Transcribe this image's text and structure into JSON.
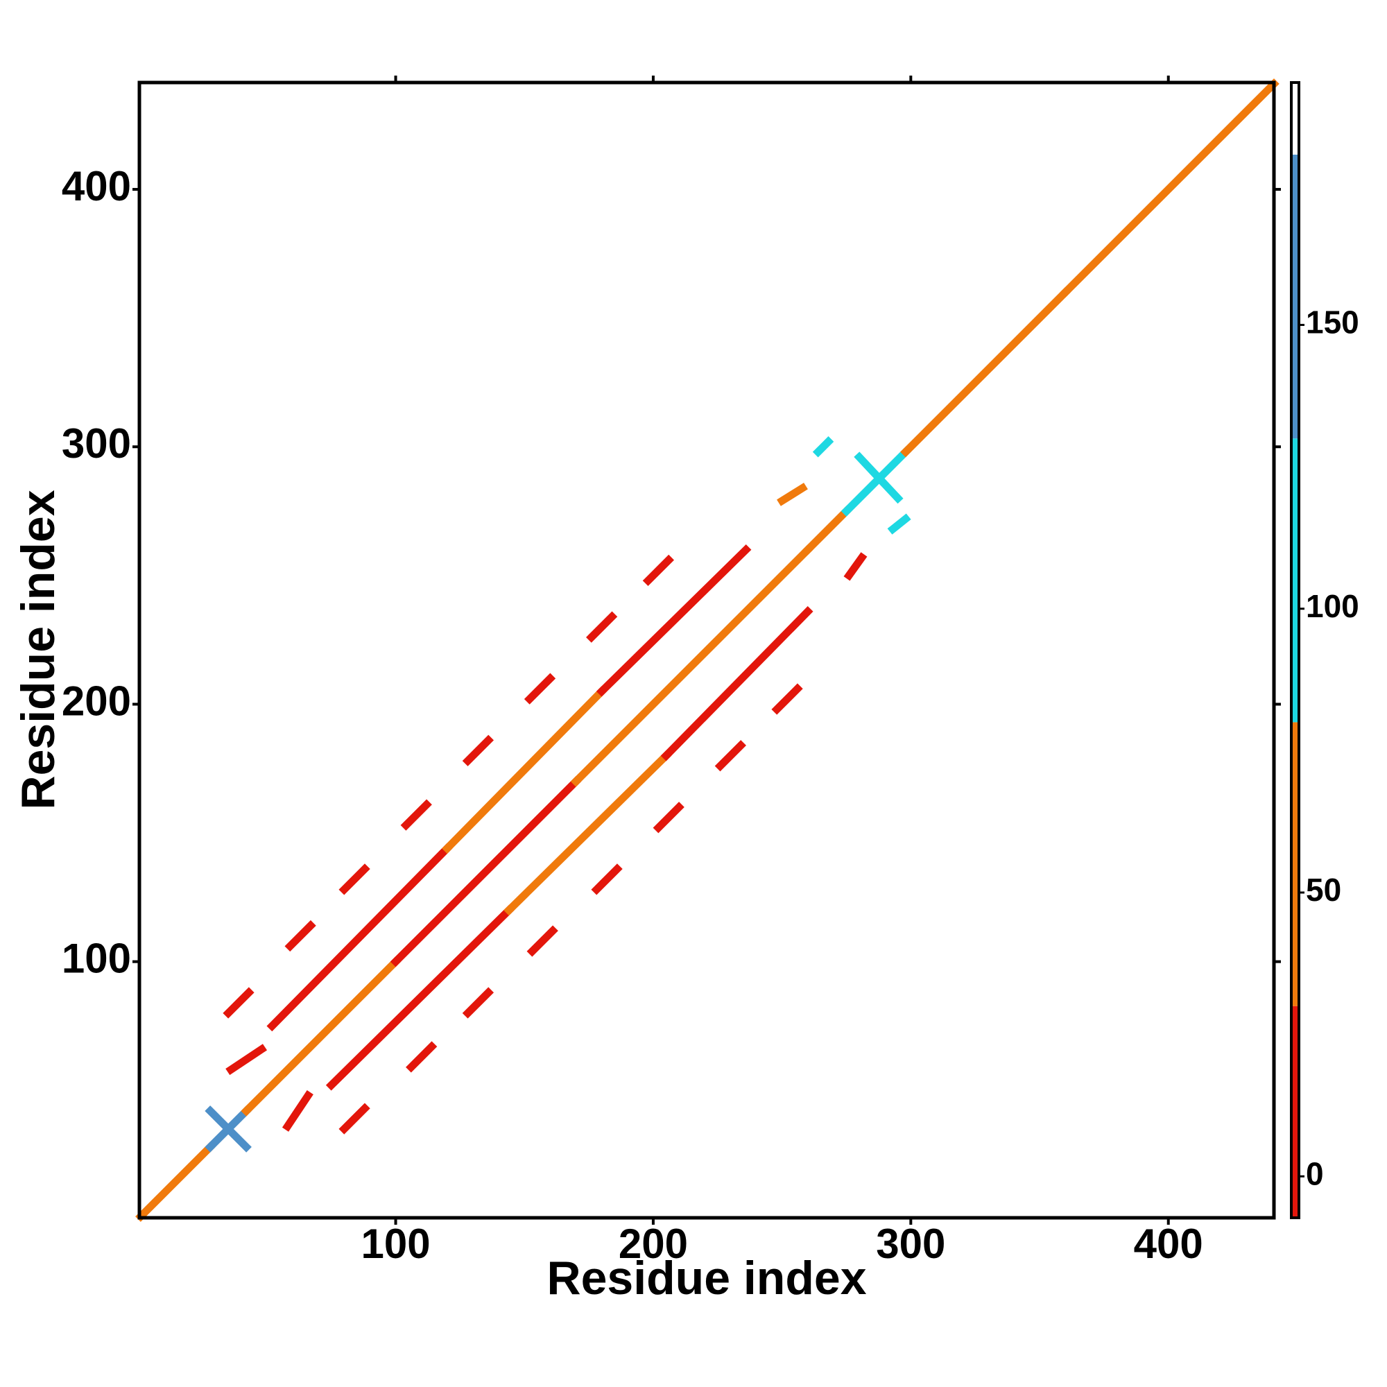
{
  "chart_data": {
    "type": "heatmap",
    "x_label": "Residue index",
    "y_label": "Residue index",
    "xlim": [
      0.5,
      441
    ],
    "ylim": [
      0.5,
      441.5
    ],
    "xticks": [
      100,
      200,
      300,
      400
    ],
    "yticks": [
      100,
      200,
      300,
      400
    ],
    "colorbar": {
      "lim": [
        -7.3,
        192.7
      ],
      "ticks": [
        0,
        50,
        100,
        150
      ],
      "bounds": [
        -7.3,
        30,
        80,
        130,
        180,
        192.7
      ],
      "colors": [
        "#e3160b",
        "#f07a0c",
        "#1ed8e2",
        "#4d8fc8",
        "#ffffff"
      ]
    },
    "segments": [
      {
        "x": [
          1,
          28
        ],
        "y": [
          1,
          28
        ],
        "value": 40
      },
      {
        "x": [
          28,
          42
        ],
        "y": [
          28,
          42
        ],
        "value": 140
      },
      {
        "x": [
          42,
          100
        ],
        "y": [
          42,
          100
        ],
        "value": 45
      },
      {
        "x": [
          100,
          170
        ],
        "y": [
          100,
          170
        ],
        "value": 20
      },
      {
        "x": [
          170,
          260
        ],
        "y": [
          170,
          260
        ],
        "value": 45
      },
      {
        "x": [
          260,
          275
        ],
        "y": [
          260,
          275
        ],
        "value": 60
      },
      {
        "x": [
          275,
          298
        ],
        "y": [
          275,
          298
        ],
        "value": 100
      },
      {
        "x": [
          298,
          360
        ],
        "y": [
          298,
          360
        ],
        "value": 50
      },
      {
        "x": [
          360,
          441
        ],
        "y": [
          360,
          441
        ],
        "value": 60
      },
      {
        "x": [
          28,
          42
        ],
        "y": [
          42,
          28
        ],
        "value": 145
      },
      {
        "x": [
          280,
          295
        ],
        "y": [
          296,
          280
        ],
        "value": 105
      },
      {
        "x": [
          36,
          48
        ],
        "y": [
          58,
          66
        ],
        "value": 10
      },
      {
        "x": [
          52,
          120
        ],
        "y": [
          75,
          144
        ],
        "value": 10
      },
      {
        "x": [
          120,
          180
        ],
        "y": [
          144,
          205
        ],
        "value": 45
      },
      {
        "x": [
          180,
          236
        ],
        "y": [
          205,
          260
        ],
        "value": 10
      },
      {
        "x": [
          58,
          66
        ],
        "y": [
          36,
          48
        ],
        "value": 10
      },
      {
        "x": [
          75,
          144
        ],
        "y": [
          52,
          120
        ],
        "value": 10
      },
      {
        "x": [
          144,
          205
        ],
        "y": [
          120,
          180
        ],
        "value": 45
      },
      {
        "x": [
          205,
          260
        ],
        "y": [
          180,
          236
        ],
        "value": 10
      },
      {
        "x": [
          35,
          43
        ],
        "y": [
          80,
          88
        ],
        "value": 10
      },
      {
        "x": [
          59,
          67
        ],
        "y": [
          106,
          114
        ],
        "value": 10
      },
      {
        "x": [
          80,
          88
        ],
        "y": [
          128,
          136
        ],
        "value": 10
      },
      {
        "x": [
          104,
          112
        ],
        "y": [
          153,
          161
        ],
        "value": 10
      },
      {
        "x": [
          128,
          136
        ],
        "y": [
          178,
          186
        ],
        "value": 10
      },
      {
        "x": [
          152,
          160
        ],
        "y": [
          202,
          210
        ],
        "value": 10
      },
      {
        "x": [
          176,
          184
        ],
        "y": [
          226,
          234
        ],
        "value": 10
      },
      {
        "x": [
          198,
          206
        ],
        "y": [
          248,
          256
        ],
        "value": 10
      },
      {
        "x": [
          80,
          88
        ],
        "y": [
          35,
          43
        ],
        "value": 10
      },
      {
        "x": [
          106,
          114
        ],
        "y": [
          59,
          67
        ],
        "value": 10
      },
      {
        "x": [
          128,
          136
        ],
        "y": [
          80,
          88
        ],
        "value": 10
      },
      {
        "x": [
          153,
          161
        ],
        "y": [
          104,
          112
        ],
        "value": 10
      },
      {
        "x": [
          178,
          186
        ],
        "y": [
          128,
          136
        ],
        "value": 10
      },
      {
        "x": [
          202,
          210
        ],
        "y": [
          152,
          160
        ],
        "value": 10
      },
      {
        "x": [
          226,
          234
        ],
        "y": [
          176,
          184
        ],
        "value": 10
      },
      {
        "x": [
          248,
          256
        ],
        "y": [
          198,
          206
        ],
        "value": 10
      },
      {
        "x": [
          250,
          258
        ],
        "y": [
          279,
          284
        ],
        "value": 40
      },
      {
        "x": [
          276,
          281
        ],
        "y": [
          250,
          257
        ],
        "value": 10
      },
      {
        "x": [
          264,
          268
        ],
        "y": [
          298,
          302
        ],
        "value": 100
      },
      {
        "x": [
          293,
          298
        ],
        "y": [
          268,
          272
        ],
        "value": 100
      }
    ]
  }
}
